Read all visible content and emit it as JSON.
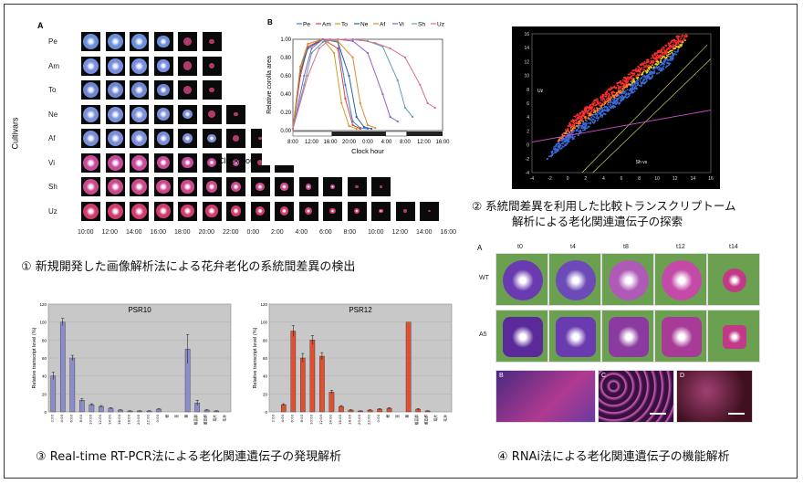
{
  "panel1": {
    "caption": "① 新規開発した画像解析法による花弁老化の系統間差異の検出",
    "grid_label": "A",
    "ylabel": "Cultivars",
    "xlabel": "Clock hour",
    "cultivars": [
      "Pe",
      "Am",
      "To",
      "Ne",
      "Af",
      "Vi",
      "Sh",
      "Uz"
    ],
    "cultivar_colors": [
      "#6b8fd8",
      "#7a8ee0",
      "#6e86d0",
      "#7a90d8",
      "#7a8dd4",
      "#c84a9a",
      "#cc4a8a",
      "#d03c6c"
    ],
    "tile_counts": [
      6,
      6,
      6,
      7,
      8,
      9,
      13,
      15
    ],
    "hours": [
      "10:00",
      "12:00",
      "14:00",
      "16:00",
      "18:00",
      "20:00",
      "22:00",
      "0:00",
      "2:00",
      "4:00",
      "6:00",
      "8:00",
      "10:00",
      "12:00",
      "14:00",
      "16:00"
    ]
  },
  "chartB": {
    "chart_data": {
      "type": "line",
      "label": "B",
      "ylabel": "Relative corolla area",
      "xlabel": "Clock hour",
      "x_ticks": [
        "8:00",
        "12:00",
        "16:00",
        "20:00",
        "0:00",
        "4:00",
        "8:00",
        "12:00",
        "16:00"
      ],
      "y_ticks": [
        "0.00",
        "0.20",
        "0.40",
        "0.60",
        "0.80",
        "1.00"
      ],
      "xlim": [
        8,
        48
      ],
      "ylim": [
        0,
        1.0
      ],
      "series": [
        {
          "name": "Pe",
          "color": "#3a7fd0",
          "x": [
            8,
            10,
            12,
            16,
            20,
            22,
            24,
            26,
            28
          ],
          "y": [
            0.02,
            0.7,
            0.9,
            1.0,
            0.98,
            0.5,
            0.1,
            0.03,
            0.02
          ]
        },
        {
          "name": "Am",
          "color": "#e04040",
          "x": [
            8,
            10,
            12,
            16,
            20,
            22,
            24,
            26
          ],
          "y": [
            0.02,
            0.6,
            0.92,
            1.0,
            0.9,
            0.35,
            0.06,
            0.02
          ]
        },
        {
          "name": "To",
          "color": "#c8a020",
          "x": [
            8,
            10,
            12,
            16,
            19,
            21,
            23,
            25
          ],
          "y": [
            0.02,
            0.7,
            0.95,
            1.0,
            0.85,
            0.3,
            0.05,
            0.02
          ]
        },
        {
          "name": "Ne",
          "color": "#3060a0",
          "x": [
            8,
            10,
            12,
            16,
            20,
            23,
            25,
            27,
            29
          ],
          "y": [
            0.02,
            0.65,
            0.9,
            1.0,
            0.97,
            0.6,
            0.15,
            0.04,
            0.02
          ]
        },
        {
          "name": "Af",
          "color": "#e08a30",
          "x": [
            8,
            10,
            12,
            16,
            20,
            24,
            26,
            28,
            30
          ],
          "y": [
            0.02,
            0.7,
            0.95,
            1.0,
            0.98,
            0.8,
            0.3,
            0.06,
            0.03
          ]
        },
        {
          "name": "Vi",
          "color": "#8a60c0",
          "x": [
            8,
            11,
            13,
            16,
            20,
            24,
            28,
            32,
            34,
            36
          ],
          "y": [
            0.02,
            0.6,
            0.9,
            1.0,
            1.0,
            0.98,
            0.85,
            0.4,
            0.15,
            0.1
          ]
        },
        {
          "name": "Sh",
          "color": "#60a0b0",
          "x": [
            8,
            11,
            13,
            16,
            20,
            24,
            28,
            32,
            36,
            38,
            40
          ],
          "y": [
            0.02,
            0.5,
            0.85,
            0.97,
            1.0,
            1.0,
            0.98,
            0.92,
            0.55,
            0.25,
            0.15
          ]
        },
        {
          "name": "Uz",
          "color": "#d87090",
          "x": [
            8,
            12,
            15,
            18,
            22,
            26,
            30,
            34,
            38,
            42,
            44,
            46
          ],
          "y": [
            0.02,
            0.6,
            0.9,
            1.0,
            1.0,
            0.99,
            0.96,
            0.9,
            0.8,
            0.5,
            0.3,
            0.25
          ]
        }
      ]
    }
  },
  "panel2": {
    "caption_line1": "② 系統間差異を利用した比較トランスクリプトーム",
    "caption_line2": "解析による老化関連遺伝子の探索",
    "y_ticks": [
      "16",
      "14",
      "12",
      "10",
      "8",
      "6",
      "4",
      "2",
      "0",
      "-2",
      "-4"
    ],
    "x_ticks": [
      "-4",
      "-2",
      "0",
      "2",
      "4",
      "6",
      "8",
      "10",
      "12",
      "14",
      "16"
    ],
    "ylabel": "Uz",
    "xlabel": "Sh vs"
  },
  "panel3": {
    "caption": "③ Real-time RT-PCR法による老化関連遺伝子の発現解析",
    "ylabel": "Relative transcript level (%)",
    "chart_data": [
      {
        "type": "bar",
        "title": "PSR10",
        "ylim": [
          0,
          120
        ],
        "y_ticks": [
          "0",
          "20",
          "40",
          "60",
          "80",
          "100",
          "120"
        ],
        "categories": [
          "2:00",
          "4:00",
          "6:00",
          "8:00",
          "10:00",
          "12:00",
          "14:00",
          "16:00",
          "18:00",
          "20:00",
          "22:00",
          "0:00",
          "根",
          "茎",
          "葉",
          "雄蕊群",
          "雌蕊群",
          "萼片",
          "花弁"
        ],
        "values": [
          40,
          100,
          60,
          13,
          8,
          6,
          4,
          2,
          1,
          1,
          1,
          3,
          0,
          0,
          70,
          10,
          2,
          1,
          0
        ],
        "errors": [
          4,
          4,
          3,
          1.5,
          1,
          1,
          0.6,
          0.4,
          0.2,
          0.2,
          0.2,
          0.6,
          0,
          0,
          16,
          3,
          0.4,
          0.2,
          0
        ],
        "color": "#8c8ccc"
      },
      {
        "type": "bar",
        "title": "PSR12",
        "ylim": [
          0,
          120
        ],
        "y_ticks": [
          "0",
          "20",
          "40",
          "60",
          "80",
          "100",
          "120"
        ],
        "categories": [
          "2:00",
          "4:00",
          "6:00",
          "8:00",
          "10:00",
          "12:00",
          "14:00",
          "16:00",
          "18:00",
          "20:00",
          "22:00",
          "0:00",
          "根",
          "茎",
          "葉",
          "雄蕊群",
          "雌蕊群",
          "萼片",
          "花弁"
        ],
        "values": [
          0,
          8,
          90,
          60,
          80,
          62,
          22,
          6,
          2,
          1,
          2,
          3,
          4,
          0,
          100,
          3,
          1,
          0,
          0
        ],
        "errors": [
          0,
          1,
          6,
          5,
          5,
          4,
          2,
          1,
          0.4,
          0.2,
          0.4,
          0.6,
          0.6,
          0,
          0,
          0.6,
          0.2,
          0,
          0
        ],
        "color": "#e05030"
      }
    ]
  },
  "panel4": {
    "caption": "④ RNAi法による老化関連遺伝子の機能解析",
    "grid_label": "A",
    "times": [
      "t0",
      "t4",
      "t8",
      "t12",
      "t14"
    ],
    "rows": [
      "WT",
      "A5"
    ],
    "sub_labels": [
      "B",
      "C",
      "D"
    ]
  }
}
